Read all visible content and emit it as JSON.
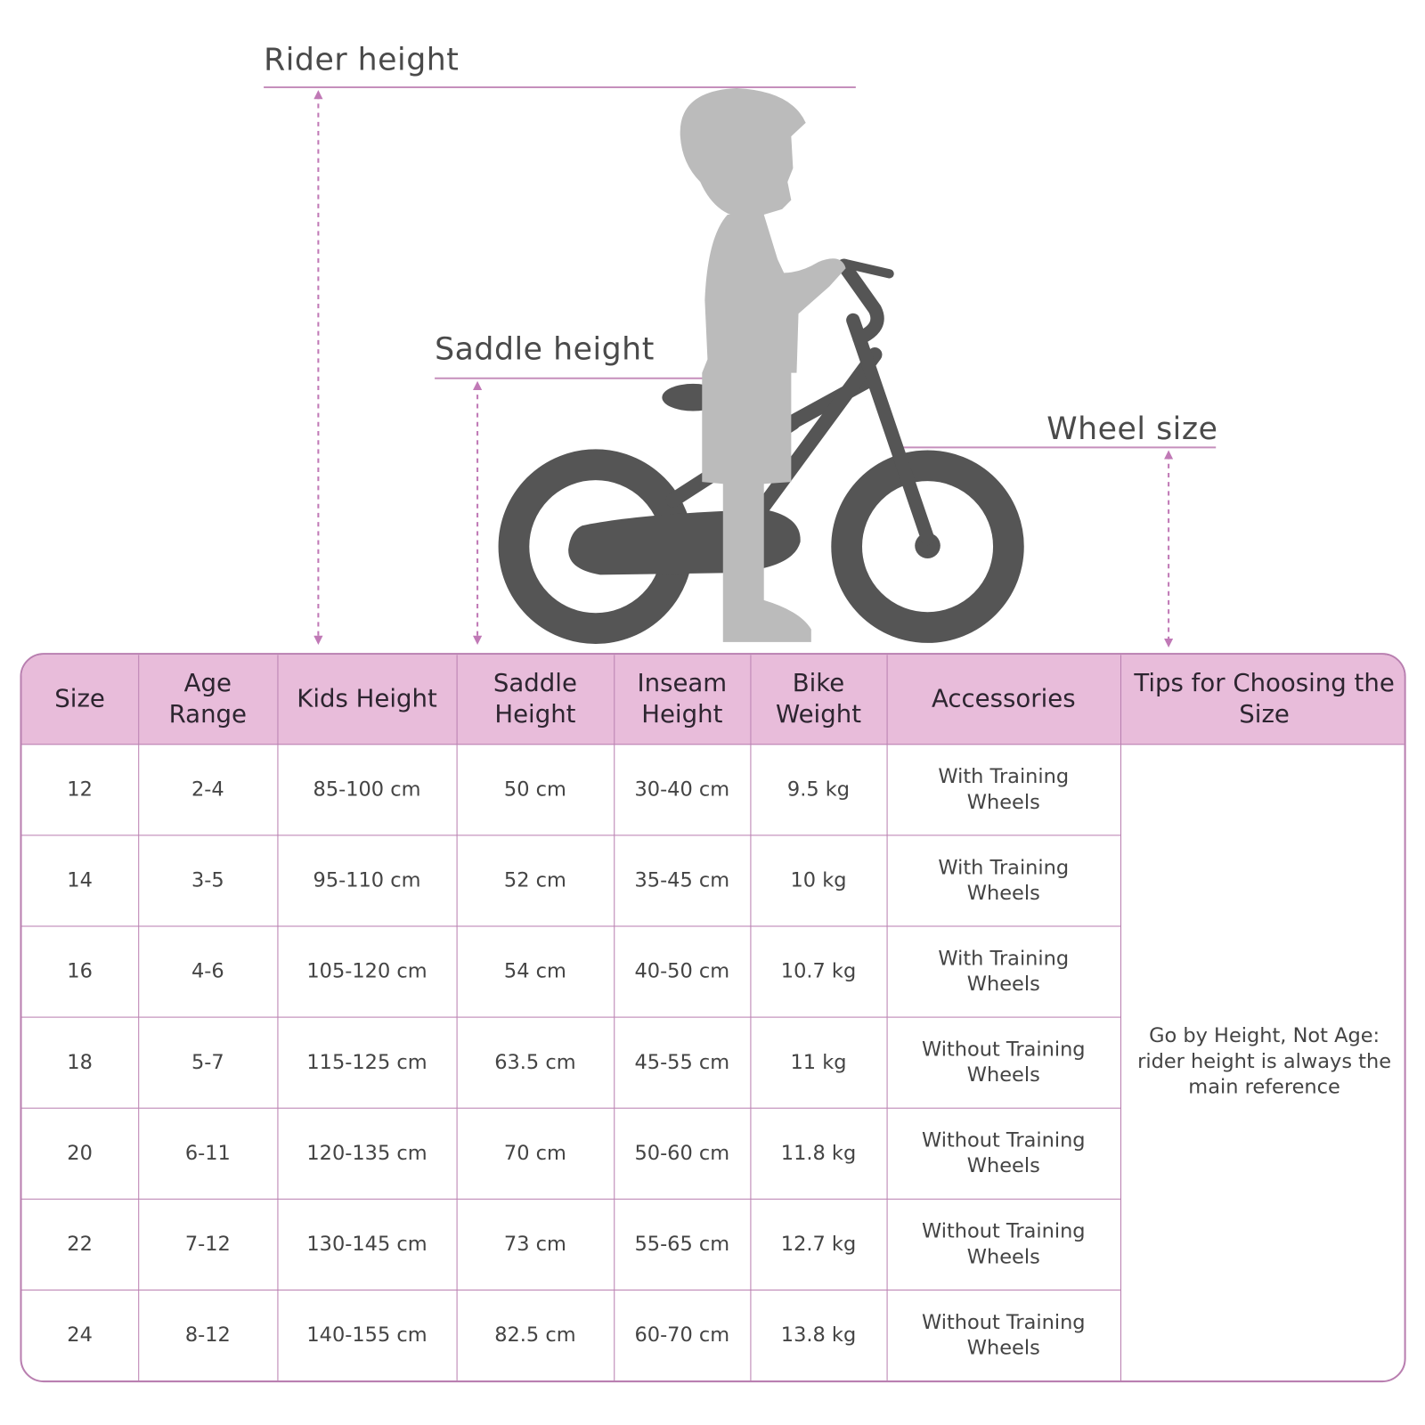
{
  "labels": {
    "rider_height": "Rider height",
    "saddle_height": "Saddle height",
    "wheel_size": "Wheel size"
  },
  "colors": {
    "accent": "#b97fb0",
    "header_bg": "#e8bcda",
    "bike": "#555555",
    "child": "#bbbbbb"
  },
  "table": {
    "headers": [
      "Size",
      "Age Range",
      "Kids Height",
      "Saddle Height",
      "Inseam Height",
      "Bike Weight",
      "Accessories",
      "Tips for Choosing the Size"
    ],
    "rows": [
      [
        "12",
        "2-4",
        "85-100 cm",
        "50 cm",
        "30-40 cm",
        "9.5 kg",
        "With Training Wheels"
      ],
      [
        "14",
        "3-5",
        "95-110 cm",
        "52 cm",
        "35-45 cm",
        "10 kg",
        "With Training Wheels"
      ],
      [
        "16",
        "4-6",
        "105-120 cm",
        "54 cm",
        "40-50 cm",
        "10.7 kg",
        "With Training Wheels"
      ],
      [
        "18",
        "5-7",
        "115-125 cm",
        "63.5 cm",
        "45-55 cm",
        "11 kg",
        "Without Training Wheels"
      ],
      [
        "20",
        "6-11",
        "120-135 cm",
        "70 cm",
        "50-60 cm",
        "11.8 kg",
        "Without Training Wheels"
      ],
      [
        "22",
        "7-12",
        "130-145 cm",
        "73 cm",
        "55-65 cm",
        "12.7 kg",
        "Without Training Wheels"
      ],
      [
        "24",
        "8-12",
        "140-155 cm",
        "82.5 cm",
        "60-70 cm",
        "13.8 kg",
        "Without Training Wheels"
      ]
    ],
    "tip": "Go by Height, Not Age: rider height is always the main reference"
  }
}
